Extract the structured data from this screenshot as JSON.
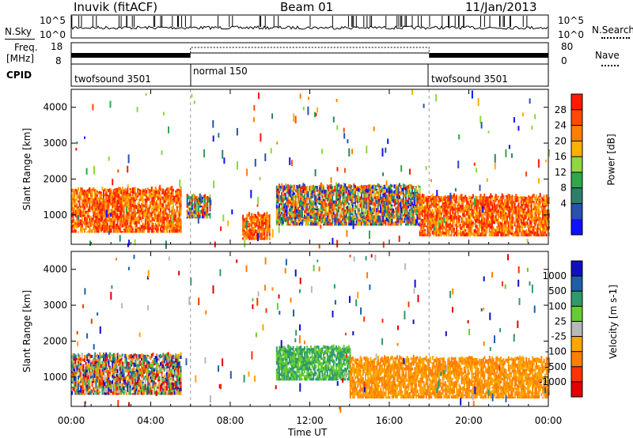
{
  "header": {
    "station": "Inuvik (fitACF)",
    "beam": "Beam 01",
    "date": "11/Jan/2013"
  },
  "top_panels": {
    "nsky_label": "N.Sky",
    "nsearch_label": "N.Search",
    "nsky_ticks": [
      "10^5",
      "10^0"
    ],
    "nsearch_ticks": [
      "10^5",
      "10^0"
    ],
    "freq_label_line1": "Freq.",
    "freq_label_line2": "[MHz]",
    "freq_ticks": [
      "18",
      "8"
    ],
    "nave_label": "Nave",
    "nave_ticks": [
      "80",
      "0"
    ],
    "cpid_label": "CPID",
    "cpid_segments": [
      "twofsound 3501",
      "normal 150",
      "twofsound 3501"
    ]
  },
  "chart_data": [
    {
      "type": "heatmap",
      "title": "",
      "ylabel": "Slant Range [km]",
      "ylim": [
        180,
        4500
      ],
      "yticks": [
        1000,
        2000,
        3000,
        4000
      ],
      "xlabel": "",
      "xlim": [
        0,
        24
      ],
      "colorbar": {
        "label": "Power [dB]",
        "ticks": [
          "28",
          "24",
          "20",
          "16",
          "12",
          "8",
          "4"
        ],
        "colors": [
          "#ff1a00",
          "#ff4a00",
          "#ff7f00",
          "#ffb000",
          "#8fd640",
          "#2ea84a",
          "#2e7f6a",
          "#2a4fb0",
          "#1010ff"
        ]
      },
      "regions": [
        {
          "t0": 0.0,
          "t1": 5.5,
          "r0": 500,
          "r1": 1700,
          "v": "high"
        },
        {
          "t0": 5.8,
          "t1": 7.0,
          "r0": 900,
          "r1": 1500,
          "v": "mid"
        },
        {
          "t0": 8.6,
          "t1": 10.0,
          "r0": 300,
          "r1": 1000,
          "v": "high"
        },
        {
          "t0": 10.3,
          "t1": 17.5,
          "r0": 700,
          "r1": 1800,
          "v": "mid"
        },
        {
          "t0": 17.5,
          "t1": 24.0,
          "r0": 400,
          "r1": 1500,
          "v": "high"
        }
      ]
    },
    {
      "type": "heatmap",
      "title": "",
      "ylabel": "Slant Range [km]",
      "ylim": [
        180,
        4500
      ],
      "yticks": [
        1000,
        2000,
        3000,
        4000
      ],
      "xlabel": "Time UT",
      "xlim": [
        0,
        24
      ],
      "xticks": [
        "00:00",
        "04:00",
        "08:00",
        "12:00",
        "16:00",
        "20:00",
        "00:00"
      ],
      "colorbar": {
        "label": "Velocity [m s-1]",
        "ticks": [
          "1000",
          "500",
          "100",
          "25",
          "-25",
          "-100",
          "-500",
          "-1000"
        ],
        "colors": [
          "#1010c0",
          "#1f5fa8",
          "#2e9a6a",
          "#66cc33",
          "#b8b8b8",
          "#ffa500",
          "#ff7f00",
          "#ff3300",
          "#e00000"
        ]
      },
      "regions": [
        {
          "t0": 0.0,
          "t1": 5.5,
          "r0": 500,
          "r1": 1600,
          "v": "mixed"
        },
        {
          "t0": 10.3,
          "t1": 14.0,
          "r0": 900,
          "r1": 1800,
          "v": "green"
        },
        {
          "t0": 14.0,
          "t1": 24.0,
          "r0": 400,
          "r1": 1500,
          "v": "orange"
        }
      ]
    }
  ]
}
